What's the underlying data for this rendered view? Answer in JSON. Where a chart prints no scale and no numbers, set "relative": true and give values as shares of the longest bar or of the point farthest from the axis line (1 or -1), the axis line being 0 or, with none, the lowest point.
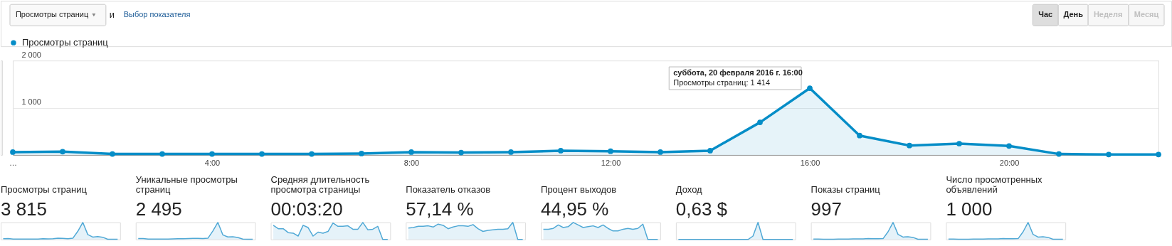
{
  "chart_data": [
    {
      "type": "area",
      "x": [
        0,
        1,
        2,
        3,
        4,
        5,
        6,
        7,
        8,
        9,
        10,
        11,
        12,
        13,
        14,
        15,
        16,
        17,
        18,
        19,
        20,
        21,
        22,
        23
      ],
      "series": [
        {
          "name": "Просмотры страниц",
          "color": "#058dc7",
          "values": [
            60,
            70,
            20,
            20,
            20,
            20,
            20,
            30,
            60,
            50,
            60,
            90,
            80,
            60,
            90,
            690,
            1414,
            410,
            200,
            240,
            190,
            20,
            10,
            10
          ]
        }
      ],
      "xlim": [
        0,
        23
      ],
      "xticks": [
        {
          "value": 0,
          "label": "…"
        },
        {
          "value": 4,
          "label": "4:00"
        },
        {
          "value": 8,
          "label": "8:00"
        },
        {
          "value": 12,
          "label": "12:00"
        },
        {
          "value": 16,
          "label": "16:00"
        },
        {
          "value": 20,
          "label": "20:00"
        }
      ],
      "ylim": [
        0,
        2000
      ],
      "yticks": [
        {
          "value": 0,
          "label": null
        },
        {
          "value": 1000,
          "label": "1 000"
        },
        {
          "value": 2000,
          "label": "2 000"
        }
      ],
      "grid": "y",
      "legend": "top left",
      "marker": "circle",
      "annotations": [
        "Просмотры страниц",
        "и",
        "Выбор показателя",
        "Час",
        "День",
        "Неделя",
        "Месяц",
        {
          "text": "суббота, 20 февраля 2016 г. 16:00",
          "x": 16,
          "y": 1414
        },
        "Просмотры страниц: 1 414"
      ]
    },
    {
      "type": "area",
      "relative": true,
      "title": "Просмотры страниц",
      "subtitle": "3 815",
      "categories": [
        null,
        null,
        null,
        null,
        null,
        null,
        null,
        null,
        null,
        null,
        null,
        null,
        null,
        null,
        null,
        null,
        null,
        null,
        null,
        null,
        null,
        null,
        null,
        null
      ],
      "series": [
        {
          "color": "#50a9d6",
          "values": [
            0.04,
            0.05,
            0.02,
            0.02,
            0.02,
            0.02,
            0.02,
            0.02,
            0.04,
            0.03,
            0.04,
            0.07,
            0.06,
            0.04,
            0.07,
            0.48,
            1,
            0.29,
            0.14,
            0.17,
            0.13,
            0.01,
            0.01,
            0.01
          ]
        }
      ]
    },
    {
      "type": "area",
      "relative": true,
      "title": "Уникальные просмотры страниц",
      "subtitle": "2 495",
      "categories": [
        null,
        null,
        null,
        null,
        null,
        null,
        null,
        null,
        null,
        null,
        null,
        null,
        null,
        null,
        null,
        null,
        null,
        null,
        null,
        null,
        null,
        null,
        null,
        null
      ],
      "series": [
        {
          "color": "#50a9d6",
          "values": [
            0.05,
            0.05,
            0.02,
            0.02,
            0.02,
            0.02,
            0.02,
            0.03,
            0.04,
            0.04,
            0.05,
            0.06,
            0.06,
            0.05,
            0.07,
            0.5,
            1,
            0.27,
            0.15,
            0.16,
            0.12,
            0.02,
            0.01,
            0.01
          ]
        }
      ]
    },
    {
      "type": "area",
      "relative": true,
      "title": "Средняя длительность просмотра страницы",
      "subtitle": "00:03:20",
      "categories": [
        null,
        null,
        null,
        null,
        null,
        null,
        null,
        null,
        null,
        null,
        null,
        null,
        null,
        null,
        null,
        null,
        null,
        null,
        null,
        null,
        null,
        null,
        null,
        null
      ],
      "series": [
        {
          "color": "#50a9d6",
          "values": [
            0.83,
            0.63,
            0.63,
            0.4,
            0.37,
            0.2,
            0.83,
            0.7,
            0.2,
            0.43,
            0.37,
            0.47,
            0.97,
            0.77,
            0.77,
            0.8,
            0.6,
            0.6,
            1,
            0.57,
            0.6,
            0.77,
            0,
            0
          ]
        }
      ]
    },
    {
      "type": "area",
      "relative": true,
      "title": "Показатель отказов",
      "subtitle": "57,14 %",
      "categories": [
        null,
        null,
        null,
        null,
        null,
        null,
        null,
        null,
        null,
        null,
        null,
        null,
        null,
        null,
        null,
        null,
        null,
        null,
        null,
        null,
        null,
        null,
        null,
        null
      ],
      "series": [
        {
          "color": "#50a9d6",
          "values": [
            0.67,
            0.7,
            0.77,
            0.77,
            0.8,
            0.73,
            0.9,
            0.83,
            0.63,
            0.73,
            0.8,
            0.8,
            0.77,
            0.87,
            0.63,
            0.47,
            0.53,
            0.57,
            0.6,
            0.6,
            0.63,
            1,
            0,
            0
          ]
        }
      ]
    },
    {
      "type": "area",
      "relative": true,
      "title": "Процент выходов",
      "subtitle": "44,95 %",
      "categories": [
        null,
        null,
        null,
        null,
        null,
        null,
        null,
        null,
        null,
        null,
        null,
        null,
        null,
        null,
        null,
        null,
        null,
        null,
        null,
        null,
        null,
        null,
        null,
        null
      ],
      "series": [
        {
          "color": "#50a9d6",
          "values": [
            0.6,
            0.6,
            0.65,
            0.85,
            0.7,
            0.75,
            1,
            0.85,
            0.7,
            0.75,
            0.8,
            0.7,
            0.85,
            0.65,
            0.5,
            0.5,
            0.6,
            0.65,
            0.6,
            0.65,
            0.9,
            0,
            0,
            0
          ]
        }
      ]
    },
    {
      "type": "area",
      "relative": true,
      "title": "Доход",
      "subtitle": "0,63 $",
      "categories": [
        null,
        null,
        null,
        null,
        null,
        null,
        null,
        null,
        null,
        null,
        null,
        null,
        null,
        null,
        null,
        null,
        null,
        null,
        null,
        null,
        null,
        null,
        null,
        null
      ],
      "series": [
        {
          "color": "#50a9d6",
          "values": [
            0,
            0,
            0,
            0,
            0,
            0,
            0,
            0,
            0,
            0,
            0,
            0,
            0,
            0,
            0,
            0.2,
            1,
            0,
            0,
            0,
            0,
            0,
            0,
            0
          ]
        }
      ]
    },
    {
      "type": "area",
      "relative": true,
      "title": "Показы страниц",
      "subtitle": "997",
      "categories": [
        null,
        null,
        null,
        null,
        null,
        null,
        null,
        null,
        null,
        null,
        null,
        null,
        null,
        null,
        null,
        null,
        null,
        null,
        null,
        null,
        null,
        null,
        null,
        null
      ],
      "series": [
        {
          "color": "#50a9d6",
          "values": [
            0.02,
            0.02,
            0.01,
            0.01,
            0.01,
            0.02,
            0.02,
            0.02,
            0.03,
            0.03,
            0.03,
            0.05,
            0.04,
            0.04,
            0.05,
            0.45,
            1,
            0.3,
            0.14,
            0.16,
            0.12,
            0.01,
            0.01,
            0.01
          ]
        }
      ]
    },
    {
      "type": "area",
      "relative": true,
      "title": "Число просмотренных объявлений",
      "subtitle": "1 000",
      "categories": [
        null,
        null,
        null,
        null,
        null,
        null,
        null,
        null,
        null,
        null,
        null,
        null,
        null,
        null,
        null,
        null,
        null,
        null,
        null,
        null,
        null,
        null,
        null,
        null
      ],
      "series": [
        {
          "color": "#50a9d6",
          "values": [
            0.02,
            0.02,
            0.01,
            0.01,
            0.01,
            0.02,
            0.02,
            0.02,
            0.03,
            0.03,
            0.03,
            0.05,
            0.04,
            0.04,
            0.05,
            0.45,
            1,
            0.3,
            0.14,
            0.16,
            0.12,
            0.01,
            0.01,
            0.01
          ]
        }
      ]
    }
  ]
}
